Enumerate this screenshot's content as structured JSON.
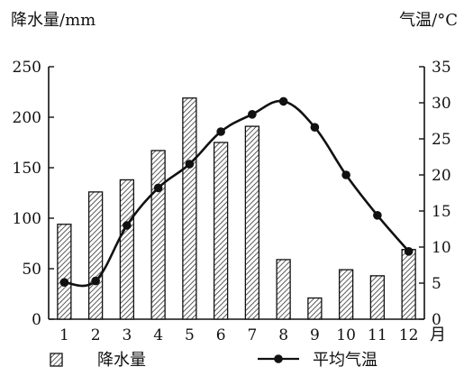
{
  "chart_data": {
    "type": "bar-line",
    "categories": [
      "1",
      "2",
      "3",
      "4",
      "5",
      "6",
      "7",
      "8",
      "9",
      "10",
      "11",
      "12"
    ],
    "x_unit": "月",
    "series": [
      {
        "name": "降水量",
        "kind": "bar",
        "axis": "left",
        "values": [
          94,
          126,
          138,
          167,
          219,
          175,
          191,
          59,
          21,
          49,
          43,
          69
        ]
      },
      {
        "name": "平均气温",
        "kind": "line",
        "axis": "right",
        "values": [
          5.1,
          5.3,
          13,
          18.2,
          21.5,
          26,
          28.4,
          30.2,
          26.6,
          20,
          14.4,
          9.4
        ]
      }
    ],
    "ylabel_left": "降水量/mm",
    "ylabel_right": "气温/°C",
    "ylim_left": [
      0,
      250
    ],
    "yticks_left": [
      0,
      50,
      100,
      150,
      200,
      250
    ],
    "ylim_right": [
      0,
      35
    ],
    "yticks_right": [
      0,
      5,
      10,
      15,
      20,
      25,
      30,
      35
    ],
    "grid": false,
    "legend_position": "bottom"
  }
}
